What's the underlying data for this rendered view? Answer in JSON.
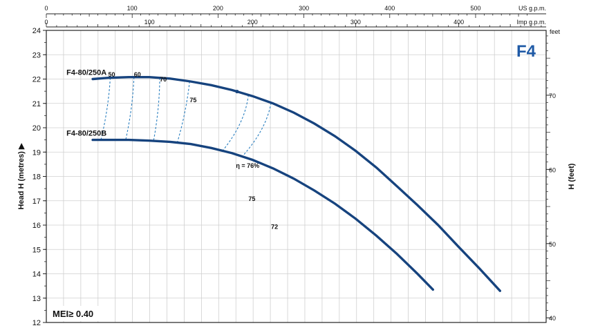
{
  "chart_data": {
    "type": "line",
    "badge": "F4",
    "mei_label": "MEI≥ 0.40",
    "ylabel": "Head H (metres) ▶",
    "ylabel_right": "H (feet)",
    "right_unit": "feet",
    "top_unit_us": "US g.p.m.",
    "top_unit_imp": "Imp g.p.m.",
    "ylim": [
      12,
      24
    ],
    "y_ticks": [
      "12",
      "13",
      "14",
      "15",
      "16",
      "17",
      "18",
      "19",
      "20",
      "21",
      "22",
      "23",
      "24"
    ],
    "right_ticks": [
      "40",
      "50",
      "60",
      "70"
    ],
    "us_gpm_ticks": [
      "0",
      "100",
      "200",
      "300",
      "400",
      "500"
    ],
    "imp_gpm_ticks": [
      "0",
      "100",
      "200",
      "300",
      "400"
    ],
    "grid": true,
    "series": [
      {
        "name": "F4-80/250A",
        "x": [
          45,
          60,
          80,
          100,
          120,
          140,
          160,
          180,
          200,
          220,
          240,
          260,
          280,
          300,
          320,
          340,
          360,
          380,
          400,
          420,
          440
        ],
        "y": [
          22.0,
          22.05,
          22.08,
          22.08,
          22.02,
          21.9,
          21.75,
          21.55,
          21.3,
          21.0,
          20.62,
          20.17,
          19.65,
          19.05,
          18.37,
          17.6,
          16.82,
          16.0,
          15.1,
          14.22,
          13.3
        ]
      },
      {
        "name": "F4-80/250B",
        "x": [
          45,
          60,
          80,
          100,
          120,
          140,
          160,
          180,
          200,
          220,
          240,
          260,
          280,
          300,
          320,
          340,
          360,
          375
        ],
        "y": [
          19.5,
          19.5,
          19.5,
          19.47,
          19.42,
          19.33,
          19.17,
          18.96,
          18.68,
          18.33,
          17.91,
          17.42,
          16.88,
          16.26,
          15.57,
          14.82,
          14.0,
          13.35
        ]
      }
    ],
    "efficiency_labels": [
      {
        "text": "50",
        "x": 60,
        "y": 22.1
      },
      {
        "text": "60",
        "x": 85,
        "y": 22.1
      },
      {
        "text": "70",
        "x": 110,
        "y": 21.9
      },
      {
        "text": "75",
        "x": 139,
        "y": 21.05
      },
      {
        "text": "η = 76%",
        "x": 184,
        "y": 18.35
      },
      {
        "text": "75",
        "x": 196,
        "y": 17.0
      },
      {
        "text": "72",
        "x": 218,
        "y": 15.85
      }
    ]
  }
}
